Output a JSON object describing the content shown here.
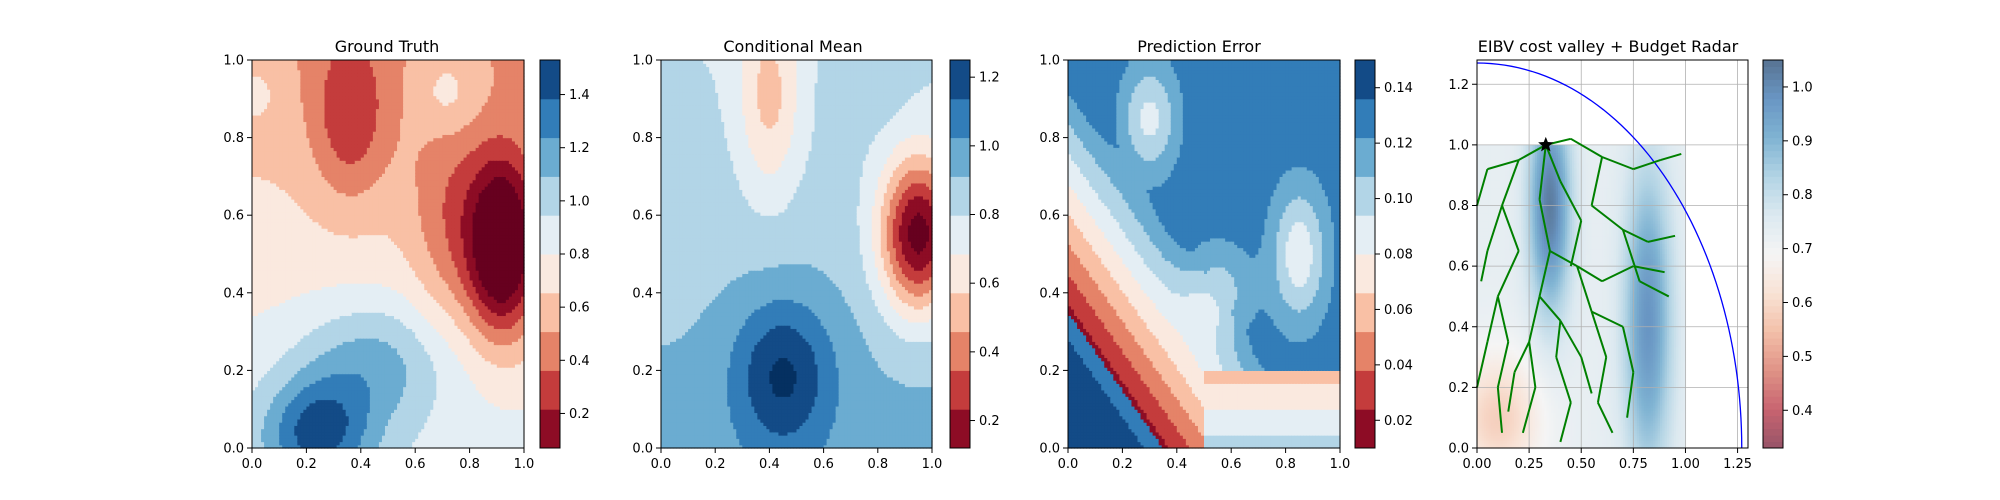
{
  "figure": {
    "background": "#ffffff"
  },
  "chart_data": [
    {
      "type": "heatmap",
      "title": "Ground Truth",
      "xlabel": "",
      "ylabel": "",
      "xlim": [
        0.0,
        1.0
      ],
      "ylim": [
        0.0,
        1.0
      ],
      "x_ticks": [
        "0.0",
        "0.2",
        "0.4",
        "0.6",
        "0.8",
        "1.0"
      ],
      "y_ticks": [
        "0.0",
        "0.2",
        "0.4",
        "0.6",
        "0.8",
        "1.0"
      ],
      "colormap": "RdBu",
      "color_range": [
        0.07,
        1.53
      ],
      "colorbar_ticks": [
        "0.2",
        "0.4",
        "0.6",
        "0.8",
        "1.0",
        "1.2",
        "1.4"
      ],
      "features": [
        {
          "x": 0.92,
          "y": 0.52,
          "amplitude": -0.95,
          "sx": 0.09,
          "sy": 0.16
        },
        {
          "x": 0.72,
          "y": 0.58,
          "amplitude": -0.25,
          "sx": 0.1,
          "sy": 0.2
        },
        {
          "x": 0.36,
          "y": 0.85,
          "amplitude": -0.35,
          "sx": 0.1,
          "sy": 0.15
        },
        {
          "x": 0.24,
          "y": 0.04,
          "amplitude": 0.55,
          "sx": 0.14,
          "sy": 0.1
        },
        {
          "x": 0.45,
          "y": 0.22,
          "amplitude": 0.35,
          "sx": 0.2,
          "sy": 0.12
        },
        {
          "x": 0.72,
          "y": 0.92,
          "amplitude": 0.2,
          "sx": 0.08,
          "sy": 0.08
        },
        {
          "x": 0.02,
          "y": 0.92,
          "amplitude": 0.12,
          "sx": 0.05,
          "sy": 0.05
        }
      ],
      "baseline": {
        "c0": 0.9,
        "cx": -0.05,
        "cy": -0.35
      },
      "grid": false,
      "grid_lines": false
    },
    {
      "type": "heatmap",
      "title": "Conditional Mean",
      "xlabel": "",
      "ylabel": "",
      "xlim": [
        0.0,
        1.0
      ],
      "ylim": [
        0.0,
        1.0
      ],
      "x_ticks": [
        "0.0",
        "0.2",
        "0.4",
        "0.6",
        "0.8",
        "1.0"
      ],
      "y_ticks": [
        "0.0",
        "0.2",
        "0.4",
        "0.6",
        "0.8",
        "1.0"
      ],
      "colormap": "RdBu",
      "color_range": [
        0.12,
        1.25
      ],
      "colorbar_ticks": [
        "0.2",
        "0.4",
        "0.6",
        "0.8",
        "1.0",
        "1.2"
      ],
      "features": [
        {
          "x": 0.95,
          "y": 0.55,
          "amplitude": -0.8,
          "sx": 0.1,
          "sy": 0.14
        },
        {
          "x": 0.45,
          "y": 0.19,
          "amplitude": 0.35,
          "sx": 0.13,
          "sy": 0.14
        },
        {
          "x": 0.4,
          "y": 0.9,
          "amplitude": -0.28,
          "sx": 0.08,
          "sy": 0.18
        },
        {
          "x": 0.75,
          "y": 0.95,
          "amplitude": 0.08,
          "sx": 0.1,
          "sy": 0.08
        }
      ],
      "baseline": {
        "c0": 0.95,
        "cx": 0.0,
        "cy": -0.15
      },
      "grid": false,
      "grid_lines": false
    },
    {
      "type": "heatmap",
      "title": "Prediction Error",
      "xlabel": "",
      "ylabel": "",
      "xlim": [
        0.0,
        1.0
      ],
      "ylim": [
        0.0,
        1.0
      ],
      "x_ticks": [
        "0.0",
        "0.2",
        "0.4",
        "0.6",
        "0.8",
        "1.0"
      ],
      "y_ticks": [
        "0.0",
        "0.2",
        "0.4",
        "0.6",
        "0.8",
        "1.0"
      ],
      "colormap": "RdBu",
      "color_range": [
        0.01,
        0.15
      ],
      "colorbar_ticks": [
        "0.02",
        "0.04",
        "0.06",
        "0.08",
        "0.10",
        "0.12",
        "0.14"
      ],
      "features": [
        {
          "x": 0.3,
          "y": 0.85,
          "amplitude": -0.04,
          "sx": 0.08,
          "sy": 0.1
        },
        {
          "x": 0.85,
          "y": 0.5,
          "amplitude": -0.04,
          "sx": 0.08,
          "sy": 0.12
        },
        {
          "x": 0.55,
          "y": 0.4,
          "amplitude": -0.02,
          "sx": 0.1,
          "sy": 0.1
        }
      ],
      "baseline": {
        "c0": 0.0,
        "cx": 0.0,
        "cy": 0.0
      },
      "grid": false,
      "grid_lines": false
    },
    {
      "type": "heatmap",
      "title": "EIBV cost valley + Budget Radar",
      "xlabel": "",
      "ylabel": "",
      "xlim": [
        0.0,
        1.3
      ],
      "ylim": [
        0.0,
        1.28
      ],
      "x_ticks": [
        "0.00",
        "0.25",
        "0.50",
        "0.75",
        "1.00",
        "1.25"
      ],
      "y_ticks": [
        "0.0",
        "0.2",
        "0.4",
        "0.6",
        "0.8",
        "1.0",
        "1.2"
      ],
      "colormap": "RdBu-muted",
      "color_range": [
        0.33,
        1.05
      ],
      "colorbar_ticks": [
        "0.4",
        "0.5",
        "0.6",
        "0.7",
        "0.8",
        "0.9",
        "1.0"
      ],
      "features": [
        {
          "x": 0.35,
          "y": 0.8,
          "amplitude": 0.3,
          "sx": 0.07,
          "sy": 0.25
        },
        {
          "x": 0.82,
          "y": 0.42,
          "amplitude": 0.25,
          "sx": 0.08,
          "sy": 0.35
        },
        {
          "x": 0.1,
          "y": 0.1,
          "amplitude": -0.15,
          "sx": 0.15,
          "sy": 0.15
        }
      ],
      "baseline": {
        "c0": 0.73,
        "cx": 0.0,
        "cy": 0.0
      },
      "grid": true,
      "grid_lines": true,
      "start_marker": {
        "x": 0.33,
        "y": 1.0,
        "shape": "star",
        "color": "#000000"
      },
      "budget_radar": {
        "center_x": 0.0,
        "center_y": 0.0,
        "radius": 1.27,
        "color": "#0000ff"
      },
      "tree_color": "#008000",
      "tree_edges": [
        [
          [
            0.33,
            1.0
          ],
          [
            0.45,
            1.02
          ]
        ],
        [
          [
            0.45,
            1.02
          ],
          [
            0.6,
            0.96
          ]
        ],
        [
          [
            0.6,
            0.96
          ],
          [
            0.75,
            0.92
          ]
        ],
        [
          [
            0.75,
            0.92
          ],
          [
            0.88,
            0.95
          ]
        ],
        [
          [
            0.88,
            0.95
          ],
          [
            0.98,
            0.97
          ]
        ],
        [
          [
            0.6,
            0.96
          ],
          [
            0.55,
            0.8
          ]
        ],
        [
          [
            0.55,
            0.8
          ],
          [
            0.7,
            0.72
          ]
        ],
        [
          [
            0.7,
            0.72
          ],
          [
            0.82,
            0.68
          ]
        ],
        [
          [
            0.82,
            0.68
          ],
          [
            0.95,
            0.7
          ]
        ],
        [
          [
            0.7,
            0.72
          ],
          [
            0.78,
            0.55
          ]
        ],
        [
          [
            0.78,
            0.55
          ],
          [
            0.92,
            0.5
          ]
        ],
        [
          [
            0.33,
            1.0
          ],
          [
            0.2,
            0.95
          ]
        ],
        [
          [
            0.2,
            0.95
          ],
          [
            0.05,
            0.92
          ]
        ],
        [
          [
            0.05,
            0.92
          ],
          [
            0.0,
            0.8
          ]
        ],
        [
          [
            0.2,
            0.95
          ],
          [
            0.12,
            0.8
          ]
        ],
        [
          [
            0.12,
            0.8
          ],
          [
            0.05,
            0.65
          ]
        ],
        [
          [
            0.05,
            0.65
          ],
          [
            0.02,
            0.55
          ]
        ],
        [
          [
            0.12,
            0.8
          ],
          [
            0.2,
            0.65
          ]
        ],
        [
          [
            0.2,
            0.65
          ],
          [
            0.1,
            0.5
          ]
        ],
        [
          [
            0.1,
            0.5
          ],
          [
            0.05,
            0.35
          ]
        ],
        [
          [
            0.05,
            0.35
          ],
          [
            0.0,
            0.2
          ]
        ],
        [
          [
            0.1,
            0.5
          ],
          [
            0.15,
            0.35
          ]
        ],
        [
          [
            0.15,
            0.35
          ],
          [
            0.1,
            0.2
          ]
        ],
        [
          [
            0.1,
            0.2
          ],
          [
            0.12,
            0.05
          ]
        ],
        [
          [
            0.33,
            1.0
          ],
          [
            0.3,
            0.82
          ]
        ],
        [
          [
            0.3,
            0.82
          ],
          [
            0.35,
            0.65
          ]
        ],
        [
          [
            0.35,
            0.65
          ],
          [
            0.3,
            0.5
          ]
        ],
        [
          [
            0.3,
            0.5
          ],
          [
            0.25,
            0.35
          ]
        ],
        [
          [
            0.25,
            0.35
          ],
          [
            0.28,
            0.2
          ]
        ],
        [
          [
            0.28,
            0.2
          ],
          [
            0.22,
            0.05
          ]
        ],
        [
          [
            0.3,
            0.5
          ],
          [
            0.4,
            0.42
          ]
        ],
        [
          [
            0.4,
            0.42
          ],
          [
            0.38,
            0.3
          ]
        ],
        [
          [
            0.38,
            0.3
          ],
          [
            0.45,
            0.15
          ]
        ],
        [
          [
            0.45,
            0.15
          ],
          [
            0.4,
            0.02
          ]
        ],
        [
          [
            0.35,
            0.65
          ],
          [
            0.48,
            0.6
          ]
        ],
        [
          [
            0.48,
            0.6
          ],
          [
            0.55,
            0.45
          ]
        ],
        [
          [
            0.55,
            0.45
          ],
          [
            0.62,
            0.3
          ]
        ],
        [
          [
            0.62,
            0.3
          ],
          [
            0.58,
            0.15
          ]
        ],
        [
          [
            0.58,
            0.15
          ],
          [
            0.65,
            0.05
          ]
        ],
        [
          [
            0.55,
            0.45
          ],
          [
            0.7,
            0.4
          ]
        ],
        [
          [
            0.7,
            0.4
          ],
          [
            0.75,
            0.25
          ]
        ],
        [
          [
            0.75,
            0.25
          ],
          [
            0.72,
            0.1
          ]
        ],
        [
          [
            0.48,
            0.6
          ],
          [
            0.6,
            0.55
          ]
        ],
        [
          [
            0.6,
            0.55
          ],
          [
            0.75,
            0.6
          ]
        ],
        [
          [
            0.75,
            0.6
          ],
          [
            0.9,
            0.58
          ]
        ],
        [
          [
            0.33,
            1.0
          ],
          [
            0.4,
            0.88
          ]
        ],
        [
          [
            0.4,
            0.88
          ],
          [
            0.5,
            0.75
          ]
        ],
        [
          [
            0.5,
            0.75
          ],
          [
            0.45,
            0.6
          ]
        ],
        [
          [
            0.25,
            0.35
          ],
          [
            0.18,
            0.25
          ]
        ],
        [
          [
            0.18,
            0.25
          ],
          [
            0.15,
            0.12
          ]
        ],
        [
          [
            0.4,
            0.42
          ],
          [
            0.5,
            0.3
          ]
        ],
        [
          [
            0.5,
            0.3
          ],
          [
            0.55,
            0.18
          ]
        ]
      ]
    }
  ]
}
